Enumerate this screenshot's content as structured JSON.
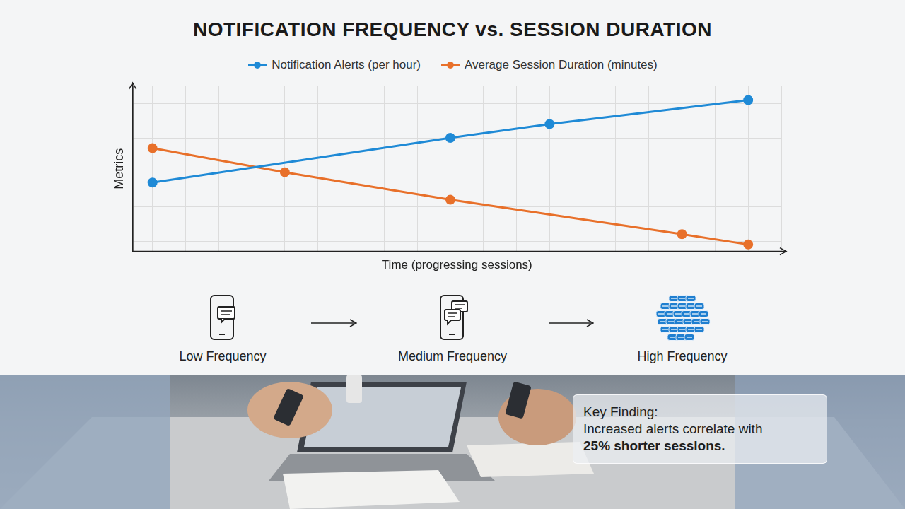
{
  "chart_data": {
    "type": "line",
    "title": "NOTIFICATION FREQUENCY vs. SESSION DURATION",
    "x_label": "Time (progressing sessions)",
    "y_label": "Metrics",
    "series": [
      {
        "name": "Notification Alerts (per hour)",
        "color": "#1f8ad6",
        "x": [
          0,
          9,
          12,
          18
        ],
        "values": [
          1.7,
          3.0,
          3.4,
          4.1
        ]
      },
      {
        "name": "Average Session Duration (minutes)",
        "color": "#e8702a",
        "x": [
          0,
          4,
          9,
          16,
          18
        ],
        "values": [
          2.7,
          2.0,
          1.2,
          0.2,
          -0.1
        ]
      }
    ],
    "xlim": [
      -0.6,
      19
    ],
    "xticks": [
      0,
      1,
      2,
      3,
      4,
      5,
      6,
      7,
      8,
      9,
      10,
      11,
      12,
      13,
      14,
      15,
      16,
      17,
      18,
      19
    ],
    "ylim": [
      -0.3,
      4.5
    ],
    "yticks": [
      0,
      1,
      2,
      3,
      4
    ],
    "grid": true,
    "legend": "top",
    "tick_labels": false,
    "marker": "circle"
  },
  "stages": [
    "Low Frequency",
    "Medium Frequency",
    "High Frequency"
  ],
  "key_finding": {
    "title": "Key Finding:",
    "text": "Increased alerts correlate with",
    "emphasis": "25% shorter sessions."
  }
}
